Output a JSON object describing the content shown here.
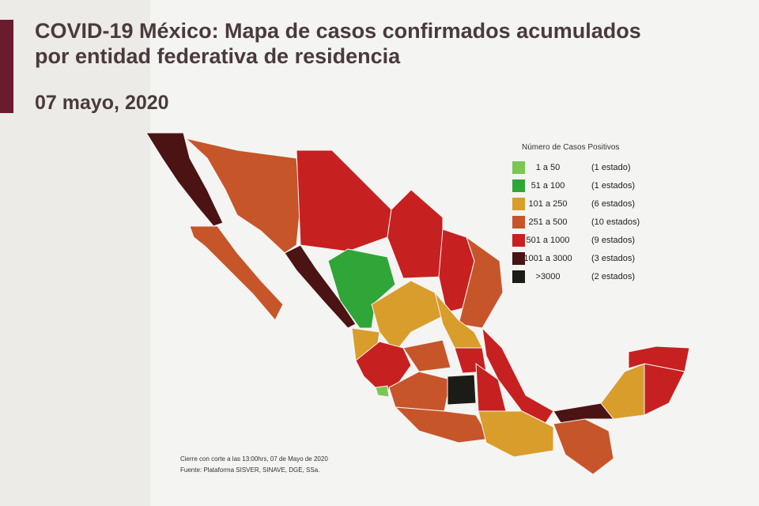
{
  "header": {
    "title_lines": [
      "COVID-19 México: Mapa de casos confirmados acumulados",
      "por entidad federativa de residencia"
    ],
    "date": "07 mayo, 2020"
  },
  "legend": {
    "title": "Número de Casos Positivos",
    "entries": [
      {
        "range": "1 a 50",
        "count": "(1 estado)",
        "color": "#7cc653"
      },
      {
        "range": "51 a 100",
        "count": "(1 estados)",
        "color": "#2fa637"
      },
      {
        "range": "101 a 250",
        "count": "(6 estados)",
        "color": "#d99d2c"
      },
      {
        "range": "251 a 500",
        "count": "(10 estados)",
        "color": "#c7552a"
      },
      {
        "range": "501 a 1000",
        "count": "(9 estados)",
        "color": "#c72020"
      },
      {
        "range": "1001 a 3000",
        "count": "(3 estados)",
        "color": "#4b1313"
      },
      {
        "range": ">3000",
        "count": "(2 estados)",
        "color": "#1c1c16"
      }
    ]
  },
  "footer": {
    "lines": [
      "Cierre con corte a las 13:00hrs, 07 de Mayo de 2020",
      "Fuente: Plataforma SISVER, SINAVE, DGE, SSa."
    ]
  }
}
